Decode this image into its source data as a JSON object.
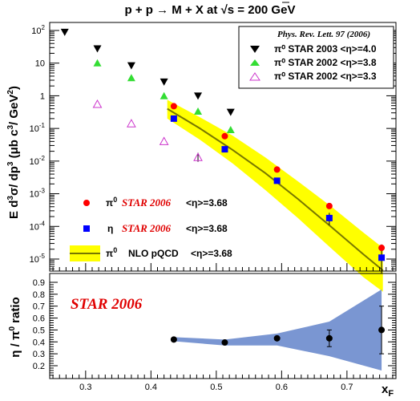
{
  "chart_data": [
    {
      "type": "scatter",
      "title": "p + p → M + X at √s = 200 GeV",
      "title_parts": {
        "pre": "p + p ",
        "arrow": "→",
        "mid": " M + X at ",
        "sqrt": "√",
        "post": "s = 200 GeV"
      },
      "ylabel": "E d³σ/ dp³ (μb c³/ GeV²)",
      "ylabel_parts": {
        "E": "E d",
        "e3a": "3",
        "sig": "σ/ dp",
        "e3b": "3",
        "units": " (μb c",
        "e3c": "3",
        "slash": "/ GeV",
        "e2": "2",
        "close": ")"
      },
      "yscale": "log",
      "ylim": [
        4e-06,
        200
      ],
      "xlim": [
        0.245,
        0.775
      ],
      "yticks": [
        {
          "label": "10",
          "exp": "2"
        },
        {
          "label": "10",
          "exp": ""
        },
        {
          "label": "1",
          "exp": ""
        },
        {
          "label": "10",
          "exp": "-1"
        },
        {
          "label": "10",
          "exp": "-2"
        },
        {
          "label": "10",
          "exp": "-3"
        },
        {
          "label": "10",
          "exp": "-4"
        },
        {
          "label": "10",
          "exp": "-5"
        }
      ],
      "legend_top": {
        "position": "top-right",
        "citation": "Phys. Rev. Lett. 97  (2006)",
        "entries": [
          {
            "label": "π⁰  STAR 2003   <η>=4.0",
            "marker": "triangle-down",
            "color": "#000000"
          },
          {
            "label": "π⁰  STAR 2002   <η>=3.8",
            "marker": "triangle-up",
            "color": "#33dd33"
          },
          {
            "label": "π⁰  STAR 2002   <η>=3.3",
            "marker": "triangle-up-open",
            "color": "#cc33cc"
          }
        ]
      },
      "legend_bottom": {
        "position": "bottom-left",
        "entries": [
          {
            "sym": "π",
            "sup": "0",
            "star": "STAR 2006",
            "eta": "<η>=3.68",
            "marker": "circle",
            "color": "#ff0000"
          },
          {
            "sym": "η",
            "sup": "",
            "star": "STAR 2006",
            "eta": "<η>=3.68",
            "marker": "square",
            "color": "#0000ff"
          },
          {
            "sym": "π",
            "sup": "0",
            "desc": "NLO pQCD",
            "eta": "<η>=3.68",
            "marker": "band",
            "color": "#ffff00"
          }
        ]
      },
      "series": [
        {
          "name": "π⁰ STAR 2003 <η>=4.0",
          "marker": "triangle-down",
          "color": "#000000",
          "x": [
            0.268,
            0.318,
            0.37,
            0.42,
            0.472,
            0.522
          ],
          "y": [
            90,
            28,
            8.5,
            2.7,
            1.0,
            0.32
          ]
        },
        {
          "name": "π⁰ STAR 2002 <η>=3.8",
          "marker": "triangle-up",
          "color": "#33dd33",
          "x": [
            0.318,
            0.37,
            0.42,
            0.472,
            0.522
          ],
          "y": [
            10,
            3.5,
            0.98,
            0.33,
            0.09
          ]
        },
        {
          "name": "π⁰ STAR 2002 <η>=3.3",
          "marker": "triangle-up-open",
          "color": "#cc33cc",
          "x": [
            0.318,
            0.37,
            0.42,
            0.472
          ],
          "y": [
            0.55,
            0.14,
            0.04,
            0.013
          ]
        },
        {
          "name": "π⁰ STAR 2006 <η>=3.68",
          "marker": "circle",
          "color": "#ff0000",
          "x": [
            0.435,
            0.513,
            0.593,
            0.673,
            0.753
          ],
          "y": [
            0.48,
            0.058,
            0.0055,
            0.00042,
            2.2e-05
          ]
        },
        {
          "name": "η STAR 2006 <η>=3.68",
          "marker": "square",
          "color": "#0000ff",
          "x": [
            0.435,
            0.513,
            0.593,
            0.673,
            0.753
          ],
          "y": [
            0.2,
            0.023,
            0.0025,
            0.00018,
            1.1e-05
          ]
        }
      ],
      "nlo_band": {
        "name": "π⁰ NLO pQCD <η>=3.68",
        "color": "#ffff00",
        "line_color": "#777700",
        "x": [
          0.425,
          0.475,
          0.525,
          0.575,
          0.625,
          0.675,
          0.725,
          0.755
        ],
        "lower": [
          0.2,
          0.045,
          0.0085,
          0.0013,
          0.00018,
          2.2e-05,
          2.8e-06,
          1e-06
        ],
        "upper": [
          0.75,
          0.22,
          0.06,
          0.013,
          0.0024,
          0.00042,
          6.5e-05,
          2.2e-05
        ],
        "central": [
          0.4,
          0.1,
          0.022,
          0.0043,
          0.00069,
          0.0001,
          1.4e-05,
          4.5e-06
        ]
      }
    },
    {
      "type": "scatter",
      "xlabel": "x",
      "xlabel_sub": "F",
      "ylabel_parts": {
        "eta": "η / π",
        "sup": "0",
        "ratio": " ratio"
      },
      "annotation": "STAR 2006",
      "xlim": [
        0.245,
        0.775
      ],
      "ylim": [
        0.1,
        0.92
      ],
      "yticks": [
        "0.2",
        "0.3",
        "0.4",
        "0.5",
        "0.6",
        "0.7",
        "0.8",
        "0.9"
      ],
      "xticks": [
        "0.3",
        "0.4",
        "0.5",
        "0.6",
        "0.7"
      ],
      "series": [
        {
          "name": "η/π⁰",
          "marker": "circle",
          "color": "#000000",
          "x": [
            0.435,
            0.513,
            0.593,
            0.673,
            0.753
          ],
          "y": [
            0.42,
            0.395,
            0.43,
            0.43,
            0.5
          ],
          "err": [
            0.0,
            0.0,
            0.0,
            0.07,
            0.2
          ]
        }
      ],
      "band": {
        "color": "#7a96d2",
        "x": [
          0.435,
          0.513,
          0.593,
          0.673,
          0.753
        ],
        "lower": [
          0.405,
          0.37,
          0.37,
          0.28,
          0.16
        ],
        "upper": [
          0.44,
          0.42,
          0.47,
          0.57,
          0.84
        ]
      }
    }
  ]
}
